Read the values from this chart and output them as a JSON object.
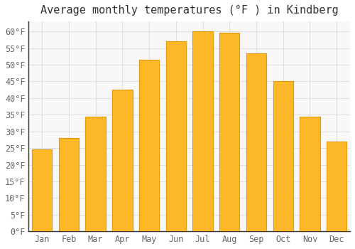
{
  "title": "Average monthly temperatures (°F ) in Kindberg",
  "months": [
    "Jan",
    "Feb",
    "Mar",
    "Apr",
    "May",
    "Jun",
    "Jul",
    "Aug",
    "Sep",
    "Oct",
    "Nov",
    "Dec"
  ],
  "values": [
    24.5,
    28.0,
    34.5,
    42.5,
    51.5,
    57.0,
    60.0,
    59.5,
    53.5,
    45.0,
    34.5,
    27.0
  ],
  "bar_color": "#FDB827",
  "bar_edge_color": "#E8960A",
  "background_color": "#ffffff",
  "plot_bg_color": "#f8f8f8",
  "grid_color": "#e0e0e0",
  "ylim": [
    0,
    63
  ],
  "yticks": [
    0,
    5,
    10,
    15,
    20,
    25,
    30,
    35,
    40,
    45,
    50,
    55,
    60
  ],
  "title_fontsize": 11,
  "tick_fontsize": 8.5,
  "font_family": "monospace"
}
